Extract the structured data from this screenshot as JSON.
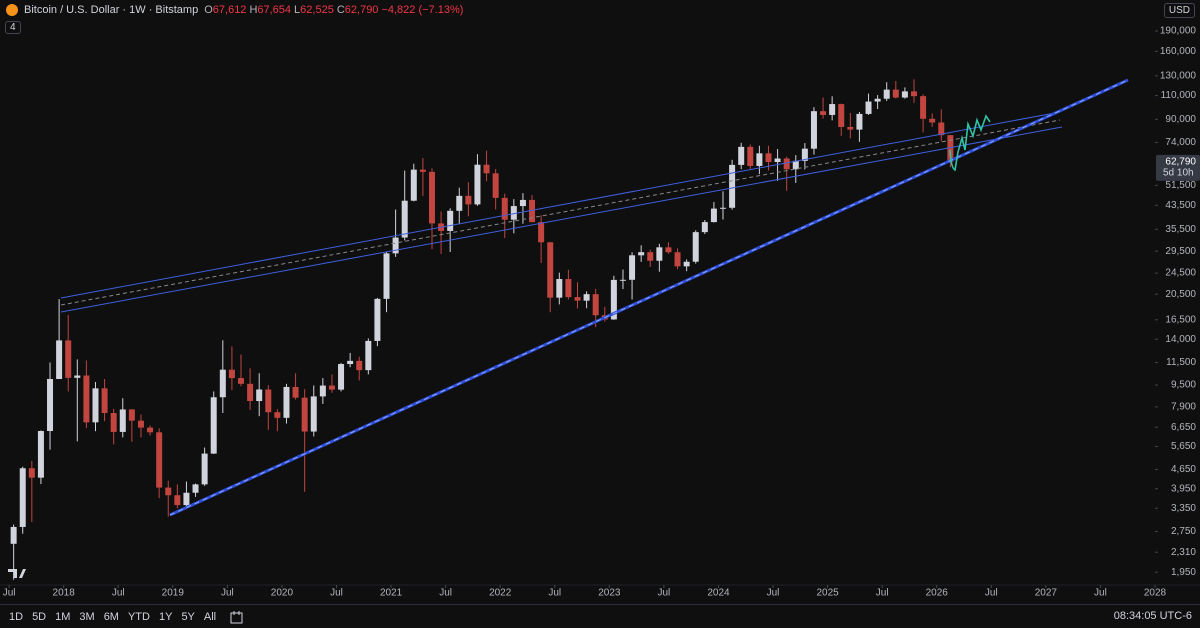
{
  "chart_data": {
    "type": "candlestick",
    "title": "Bitcoin / U.S. Dollar · 1W · Bitstamp",
    "legend": [
      "O",
      "67,612",
      "H",
      "67,654",
      "L",
      "62,525",
      "C",
      "62,790",
      "−4,822 (−7.13%)"
    ],
    "log_scale": true,
    "up_color": "#d1d4dc",
    "down_color": "#c2453f",
    "ylim": [
      1750,
      247000
    ],
    "xlim": [
      "2017-06",
      "2028-01"
    ],
    "yticks": [
      {
        "value": 190000,
        "label": "190,000"
      },
      {
        "value": 160000,
        "label": "160,000"
      },
      {
        "value": 130000,
        "label": "130,000"
      },
      {
        "value": 110000,
        "label": "110,000"
      },
      {
        "value": 90000,
        "label": "90,000"
      },
      {
        "value": 74000,
        "label": "74,000"
      },
      {
        "value": 51500,
        "label": "51,500"
      },
      {
        "value": 43500,
        "label": "43,500"
      },
      {
        "value": 35500,
        "label": "35,500"
      },
      {
        "value": 29500,
        "label": "29,500"
      },
      {
        "value": 24500,
        "label": "24,500"
      },
      {
        "value": 20500,
        "label": "20,500"
      },
      {
        "value": 16500,
        "label": "16,500"
      },
      {
        "value": 14000,
        "label": "14,000"
      },
      {
        "value": 11500,
        "label": "11,500"
      },
      {
        "value": 9500,
        "label": "9,500"
      },
      {
        "value": 7900,
        "label": "7,900"
      },
      {
        "value": 6650,
        "label": "6,650"
      },
      {
        "value": 5650,
        "label": "5,650"
      },
      {
        "value": 4650,
        "label": "4,650"
      },
      {
        "value": 3950,
        "label": "3,950"
      },
      {
        "value": 3350,
        "label": "3,350"
      },
      {
        "value": 2750,
        "label": "2,750"
      },
      {
        "value": 2310,
        "label": "2,310"
      },
      {
        "value": 1950,
        "label": "1,950"
      }
    ],
    "xticks": [
      {
        "value": "2017-07",
        "label": "Jul"
      },
      {
        "value": "2018-01",
        "label": "2018"
      },
      {
        "value": "2018-07",
        "label": "Jul"
      },
      {
        "value": "2019-01",
        "label": "2019"
      },
      {
        "value": "2019-07",
        "label": "Jul"
      },
      {
        "value": "2020-01",
        "label": "2020"
      },
      {
        "value": "2020-07",
        "label": "Jul"
      },
      {
        "value": "2021-01",
        "label": "2021"
      },
      {
        "value": "2021-07",
        "label": "Jul"
      },
      {
        "value": "2022-01",
        "label": "2022"
      },
      {
        "value": "2022-07",
        "label": "Jul"
      },
      {
        "value": "2023-01",
        "label": "2023"
      },
      {
        "value": "2023-07",
        "label": "Jul"
      },
      {
        "value": "2024-01",
        "label": "2024"
      },
      {
        "value": "2024-07",
        "label": "Jul"
      },
      {
        "value": "2025-01",
        "label": "2025"
      },
      {
        "value": "2025-07",
        "label": "Jul"
      },
      {
        "value": "2026-01",
        "label": "2026"
      },
      {
        "value": "2026-07",
        "label": "Jul"
      },
      {
        "value": "2027-01",
        "label": "2027"
      },
      {
        "value": "2027-07",
        "label": "Jul"
      },
      {
        "value": "2028-01",
        "label": "2028"
      }
    ],
    "last_price": {
      "value": 62790,
      "label": "62,790"
    },
    "countdown": "5d 10h",
    "x": [
      "2017-07",
      "2017-08",
      "2017-09",
      "2017-10",
      "2017-11",
      "2017-12",
      "2018-01",
      "2018-02",
      "2018-03",
      "2018-04",
      "2018-05",
      "2018-06",
      "2018-07",
      "2018-08",
      "2018-09",
      "2018-10",
      "2018-11",
      "2018-12",
      "2019-01",
      "2019-02",
      "2019-03",
      "2019-04",
      "2019-05",
      "2019-06",
      "2019-07",
      "2019-08",
      "2019-09",
      "2019-10",
      "2019-11",
      "2019-12",
      "2020-01",
      "2020-02",
      "2020-03",
      "2020-04",
      "2020-05",
      "2020-06",
      "2020-07",
      "2020-08",
      "2020-09",
      "2020-10",
      "2020-11",
      "2020-12",
      "2021-01",
      "2021-02",
      "2021-03",
      "2021-04",
      "2021-05",
      "2021-06",
      "2021-07",
      "2021-08",
      "2021-09",
      "2021-10",
      "2021-11",
      "2021-12",
      "2022-01",
      "2022-02",
      "2022-03",
      "2022-04",
      "2022-05",
      "2022-06",
      "2022-07",
      "2022-08",
      "2022-09",
      "2022-10",
      "2022-11",
      "2022-12",
      "2023-01",
      "2023-02",
      "2023-03",
      "2023-04",
      "2023-05",
      "2023-06",
      "2023-07",
      "2023-08",
      "2023-09",
      "2023-10",
      "2023-11",
      "2023-12",
      "2024-01",
      "2024-02",
      "2024-03",
      "2024-04",
      "2024-05",
      "2024-06",
      "2024-07",
      "2024-08",
      "2024-09",
      "2024-10",
      "2024-11",
      "2024-12",
      "2025-01",
      "2025-02",
      "2025-03",
      "2025-04",
      "2025-05",
      "2025-06",
      "2025-07",
      "2025-08",
      "2025-09",
      "2025-10",
      "2025-11",
      "2025-12",
      "2026-01",
      "2026-02"
    ],
    "open": [
      2480,
      2860,
      4700,
      4340,
      6440,
      10000,
      13860,
      10100,
      10300,
      6930,
      9240,
      7500,
      6390,
      7730,
      7030,
      6630,
      6370,
      3990,
      3740,
      3440,
      3820,
      4100,
      5320,
      8570,
      10820,
      10080,
      9600,
      8300,
      9150,
      7550,
      7200,
      9350,
      8540,
      6410,
      8630,
      9460,
      9140,
      11350,
      11660,
      10780,
      13800,
      19700,
      28950,
      33100,
      45200,
      58800,
      57700,
      37300,
      35000,
      41500,
      47100,
      43800,
      61300,
      57000,
      46300,
      38500,
      43200,
      45500,
      37700,
      31800,
      19900,
      23300,
      20000,
      19400,
      20500,
      17150,
      16550,
      23130,
      23150,
      28480,
      29250,
      27200,
      30470,
      29230,
      25940,
      26970,
      34650,
      37720,
      42280,
      42580,
      61200,
      71300,
      60650,
      67500,
      62700,
      64600,
      58980,
      63330,
      70200,
      96400,
      93400,
      102400,
      84350,
      82500,
      94200,
      104600,
      107100,
      115700,
      108200,
      114000,
      109500,
      90400,
      87600,
      78700
    ],
    "high": [
      2920,
      4760,
      5000,
      6470,
      11500,
      19666,
      17200,
      11800,
      11700,
      9750,
      10000,
      7770,
      8500,
      7750,
      7400,
      6750,
      6590,
      4230,
      4100,
      4200,
      4130,
      5600,
      9000,
      13880,
      13180,
      12300,
      10950,
      10500,
      9500,
      7750,
      9600,
      10500,
      9180,
      9470,
      10080,
      10400,
      11450,
      12470,
      12080,
      14100,
      19860,
      29300,
      41950,
      58350,
      61800,
      64900,
      59500,
      41300,
      42400,
      50500,
      52900,
      67000,
      69000,
      59100,
      48000,
      45800,
      48200,
      47400,
      40000,
      31900,
      24600,
      25200,
      22700,
      21000,
      21450,
      18400,
      23950,
      25250,
      29200,
      31000,
      29850,
      31400,
      31800,
      30200,
      27500,
      35200,
      38400,
      44700,
      48950,
      63900,
      73750,
      72750,
      71950,
      71950,
      70000,
      65600,
      66500,
      73600,
      99800,
      108300,
      109350,
      102750,
      95000,
      95750,
      111900,
      110500,
      123200,
      124400,
      117900,
      126200,
      111200,
      94600,
      97900,
      79000
    ],
    "low": [
      1830,
      2700,
      2980,
      4110,
      5500,
      10000,
      9000,
      5900,
      6600,
      6430,
      7000,
      5750,
      6100,
      5880,
      6100,
      6200,
      3650,
      3120,
      3350,
      3390,
      3690,
      4050,
      5300,
      7500,
      9100,
      9400,
      7700,
      7300,
      6500,
      6430,
      6860,
      8400,
      3850,
      6150,
      8100,
      8900,
      9000,
      11050,
      9880,
      10400,
      13200,
      17600,
      28100,
      32300,
      44950,
      47000,
      30000,
      28800,
      29300,
      37300,
      39600,
      43300,
      53300,
      42000,
      32950,
      34300,
      37200,
      37700,
      26700,
      17600,
      18800,
      19600,
      18150,
      18200,
      15500,
      16250,
      16500,
      21400,
      19600,
      26950,
      25800,
      24800,
      28850,
      25350,
      24900,
      26550,
      34100,
      37600,
      38550,
      41900,
      59000,
      59200,
      56600,
      58400,
      53500,
      49100,
      52550,
      58900,
      66800,
      90500,
      89200,
      78200,
      76600,
      74400,
      93400,
      98200,
      105100,
      107300,
      107250,
      103500,
      80600,
      84400,
      74600,
      60000
    ],
    "close": [
      2860,
      4700,
      4340,
      6440,
      10000,
      13860,
      10100,
      10300,
      6930,
      9240,
      7500,
      6390,
      7730,
      7030,
      6630,
      6370,
      3990,
      3740,
      3440,
      3820,
      4100,
      5320,
      8570,
      10820,
      10080,
      9600,
      8300,
      9150,
      7550,
      7200,
      9350,
      8540,
      6410,
      8630,
      9460,
      9140,
      11350,
      11660,
      10780,
      13800,
      19700,
      28950,
      33100,
      45200,
      58800,
      57700,
      37300,
      35000,
      41500,
      47100,
      43800,
      61300,
      57000,
      46300,
      38500,
      43200,
      45500,
      37700,
      31800,
      19900,
      23300,
      20000,
      19400,
      20500,
      17150,
      16550,
      23130,
      23150,
      28480,
      29250,
      27200,
      30470,
      29230,
      25940,
      26970,
      34650,
      37720,
      42280,
      42580,
      61200,
      71300,
      60650,
      67500,
      62700,
      64600,
      58980,
      63330,
      70200,
      96400,
      93400,
      102400,
      84350,
      82500,
      94200,
      104600,
      107100,
      115700,
      108200,
      114000,
      109500,
      90400,
      87600,
      78700,
      62790
    ]
  },
  "ui": {
    "currency": "USD",
    "indicators": "4",
    "ranges": [
      "1D",
      "5D",
      "1M",
      "3M",
      "6M",
      "YTD",
      "1Y",
      "5Y",
      "All"
    ],
    "clock": "08:34:05 UTC-6"
  }
}
